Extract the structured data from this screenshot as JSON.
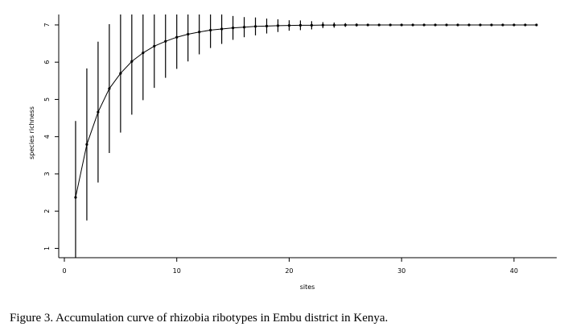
{
  "caption": "Figure 3. Accumulation curve of rhizobia ribotypes in Embu district in Kenya.",
  "chart_data": {
    "type": "line",
    "title": "",
    "xlabel": "sites",
    "ylabel": "species richness",
    "xlim": [
      -0.5,
      43.8
    ],
    "ylim": [
      0.75,
      7.28
    ],
    "xticks": [
      0,
      10,
      20,
      30,
      40
    ],
    "yticks": [
      1,
      2,
      3,
      4,
      5,
      6,
      7
    ],
    "grid": false,
    "legend": "none",
    "error_bars": "vertical",
    "series": [
      {
        "x": [
          1,
          2,
          3,
          4,
          5,
          6,
          7,
          8,
          9,
          10,
          11,
          12,
          13,
          14,
          15,
          16,
          17,
          18,
          19,
          20,
          21,
          22,
          23,
          24,
          25,
          26,
          27,
          28,
          29,
          30,
          31,
          32,
          33,
          34,
          35,
          36,
          37,
          38,
          39,
          40,
          41,
          42
        ],
        "y": [
          2.37,
          3.79,
          4.66,
          5.29,
          5.7,
          6.02,
          6.25,
          6.43,
          6.56,
          6.67,
          6.75,
          6.81,
          6.86,
          6.89,
          6.92,
          6.94,
          6.96,
          6.97,
          6.98,
          6.985,
          6.99,
          6.99,
          6.995,
          6.995,
          6.998,
          6.999,
          7,
          7,
          7,
          7,
          7,
          7,
          7,
          7,
          7,
          7,
          7,
          7,
          7,
          7,
          7,
          7
        ],
        "err": [
          2.05,
          2.04,
          1.89,
          1.73,
          1.59,
          1.43,
          1.27,
          1.12,
          0.98,
          0.85,
          0.73,
          0.6,
          0.48,
          0.4,
          0.32,
          0.27,
          0.24,
          0.2,
          0.17,
          0.14,
          0.13,
          0.11,
          0.08,
          0.07,
          0.05,
          0.04,
          0.03,
          0.02,
          0.01,
          0.01,
          0.01,
          0.01,
          0.01,
          0.01,
          0.01,
          0.01,
          0.01,
          0.01,
          0.01,
          0.01,
          0.01,
          0.01
        ]
      }
    ]
  }
}
